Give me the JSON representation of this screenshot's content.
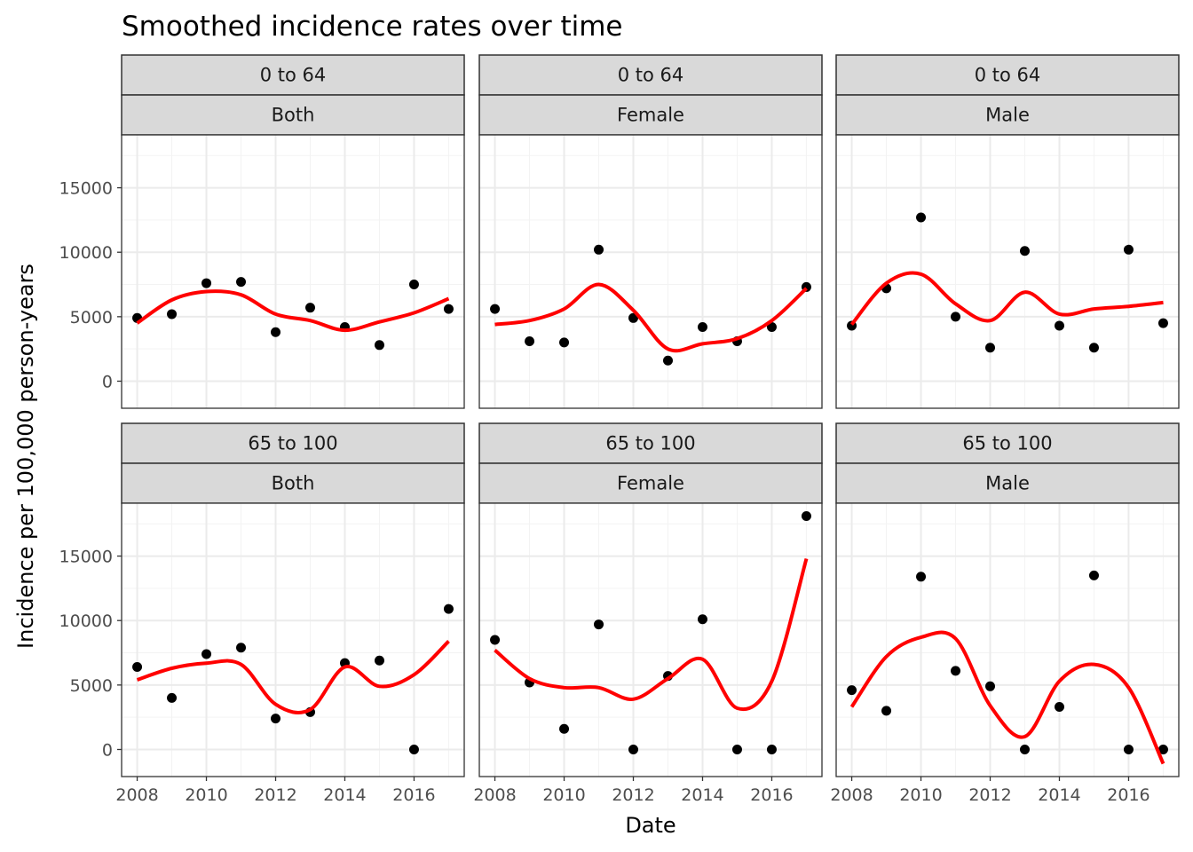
{
  "chart_data": {
    "type": "scatter",
    "title": "Smoothed incidence rates over time",
    "xlabel": "Date",
    "ylabel": "Incidence per 100,000 person-years",
    "xlim": [
      2007.55,
      2017.45
    ],
    "ylim": [
      -2100,
      19100
    ],
    "x_ticks": [
      2008,
      2010,
      2012,
      2014,
      2016
    ],
    "x_tick_labels": [
      "2008",
      "2010",
      "2012",
      "2014",
      "2016"
    ],
    "y_ticks": [
      0,
      5000,
      10000,
      15000
    ],
    "y_tick_labels": [
      "0",
      "5000",
      "10000",
      "15000"
    ],
    "grid": true,
    "smooth_color": "#ff0000",
    "point_color": "#000000",
    "facets": [
      {
        "row": 0,
        "col": 0,
        "strip_top": "0 to 64",
        "strip_bottom": "Both",
        "points": [
          [
            2008,
            4900
          ],
          [
            2009,
            5200
          ],
          [
            2010,
            7600
          ],
          [
            2011,
            7700
          ],
          [
            2012,
            3800
          ],
          [
            2013,
            5700
          ],
          [
            2014,
            4200
          ],
          [
            2015,
            2800
          ],
          [
            2016,
            7500
          ],
          [
            2017,
            5600
          ]
        ],
        "smooth": [
          [
            2008,
            4500
          ],
          [
            2009,
            6300
          ],
          [
            2010,
            6950
          ],
          [
            2011,
            6700
          ],
          [
            2012,
            5200
          ],
          [
            2013,
            4700
          ],
          [
            2014,
            3950
          ],
          [
            2015,
            4600
          ],
          [
            2016,
            5300
          ],
          [
            2017,
            6400
          ]
        ]
      },
      {
        "row": 0,
        "col": 1,
        "strip_top": "0 to 64",
        "strip_bottom": "Female",
        "points": [
          [
            2008,
            5600
          ],
          [
            2009,
            3100
          ],
          [
            2010,
            3000
          ],
          [
            2011,
            10200
          ],
          [
            2012,
            4900
          ],
          [
            2013,
            1600
          ],
          [
            2014,
            4200
          ],
          [
            2015,
            3100
          ],
          [
            2016,
            4200
          ],
          [
            2017,
            7300
          ]
        ],
        "smooth": [
          [
            2008,
            4400
          ],
          [
            2009,
            4700
          ],
          [
            2010,
            5600
          ],
          [
            2011,
            7500
          ],
          [
            2012,
            5500
          ],
          [
            2013,
            2500
          ],
          [
            2014,
            2900
          ],
          [
            2015,
            3300
          ],
          [
            2016,
            4700
          ],
          [
            2017,
            7200
          ]
        ]
      },
      {
        "row": 0,
        "col": 2,
        "strip_top": "0 to 64",
        "strip_bottom": "Male",
        "points": [
          [
            2008,
            4300
          ],
          [
            2009,
            7200
          ],
          [
            2010,
            12700
          ],
          [
            2011,
            5000
          ],
          [
            2012,
            2600
          ],
          [
            2013,
            10100
          ],
          [
            2014,
            4300
          ],
          [
            2015,
            2600
          ],
          [
            2016,
            10200
          ],
          [
            2017,
            4500
          ]
        ],
        "smooth": [
          [
            2008,
            4400
          ],
          [
            2009,
            7600
          ],
          [
            2010,
            8300
          ],
          [
            2011,
            6000
          ],
          [
            2012,
            4700
          ],
          [
            2013,
            6900
          ],
          [
            2014,
            5200
          ],
          [
            2015,
            5600
          ],
          [
            2016,
            5800
          ],
          [
            2017,
            6100
          ]
        ]
      },
      {
        "row": 1,
        "col": 0,
        "strip_top": "65 to 100",
        "strip_bottom": "Both",
        "points": [
          [
            2008,
            6400
          ],
          [
            2009,
            4000
          ],
          [
            2010,
            7400
          ],
          [
            2011,
            7900
          ],
          [
            2012,
            2400
          ],
          [
            2013,
            2900
          ],
          [
            2014,
            6700
          ],
          [
            2015,
            6900
          ],
          [
            2016,
            0
          ],
          [
            2017,
            10900
          ]
        ],
        "smooth": [
          [
            2008,
            5400
          ],
          [
            2009,
            6300
          ],
          [
            2010,
            6700
          ],
          [
            2011,
            6600
          ],
          [
            2012,
            3500
          ],
          [
            2013,
            3100
          ],
          [
            2014,
            6400
          ],
          [
            2015,
            4900
          ],
          [
            2016,
            5800
          ],
          [
            2017,
            8400
          ]
        ]
      },
      {
        "row": 1,
        "col": 1,
        "strip_top": "65 to 100",
        "strip_bottom": "Female",
        "points": [
          [
            2008,
            8500
          ],
          [
            2009,
            5200
          ],
          [
            2010,
            1600
          ],
          [
            2011,
            9700
          ],
          [
            2012,
            0
          ],
          [
            2013,
            5700
          ],
          [
            2014,
            10100
          ],
          [
            2015,
            0
          ],
          [
            2016,
            0
          ],
          [
            2017,
            18100
          ]
        ],
        "smooth": [
          [
            2008,
            7700
          ],
          [
            2009,
            5500
          ],
          [
            2010,
            4800
          ],
          [
            2011,
            4800
          ],
          [
            2012,
            3900
          ],
          [
            2013,
            5500
          ],
          [
            2014,
            7000
          ],
          [
            2015,
            3200
          ],
          [
            2016,
            5300
          ],
          [
            2017,
            14800
          ]
        ]
      },
      {
        "row": 1,
        "col": 2,
        "strip_top": "65 to 100",
        "strip_bottom": "Male",
        "points": [
          [
            2008,
            4600
          ],
          [
            2009,
            3000
          ],
          [
            2010,
            13400
          ],
          [
            2011,
            6100
          ],
          [
            2012,
            4900
          ],
          [
            2013,
            0
          ],
          [
            2014,
            3300
          ],
          [
            2015,
            13500
          ],
          [
            2016,
            0
          ],
          [
            2017,
            0
          ]
        ],
        "smooth": [
          [
            2008,
            3300
          ],
          [
            2009,
            7200
          ],
          [
            2010,
            8700
          ],
          [
            2011,
            8600
          ],
          [
            2012,
            3400
          ],
          [
            2013,
            1000
          ],
          [
            2014,
            5300
          ],
          [
            2015,
            6600
          ],
          [
            2016,
            4800
          ],
          [
            2017,
            -1100
          ]
        ]
      }
    ]
  }
}
